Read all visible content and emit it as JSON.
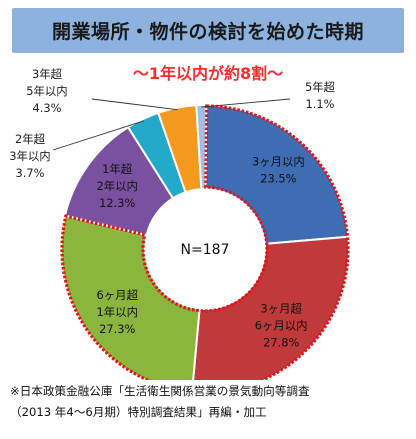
{
  "title": "開業場所・物件の検討を始めた時期",
  "subtitle": "～1年以内が約8割～",
  "source_lines": [
    "※日本政策金融公庫「生活衛生関係営業の景気動向等調査",
    "（2013 年4～6月期）特別調査結果」再編・加工"
  ],
  "chart_data": {
    "type": "pie",
    "donut": true,
    "center_label": "N=187",
    "slices": [
      {
        "label_lines": [
          "3ヶ月以内"
        ],
        "pct_text": "23.5%",
        "value": 23.5,
        "color": "#3f6db3",
        "label_pos": "inside",
        "highlight": true
      },
      {
        "label_lines": [
          "3ヶ月超",
          "6ヶ月以内"
        ],
        "pct_text": "27.8%",
        "value": 27.8,
        "color": "#c0393b",
        "label_pos": "inside",
        "highlight": true
      },
      {
        "label_lines": [
          "6ヶ月超",
          "1年以内"
        ],
        "pct_text": "27.3%",
        "value": 27.3,
        "color": "#8bb63e",
        "label_pos": "inside",
        "highlight": true
      },
      {
        "label_lines": [
          "1年超",
          "2年以内"
        ],
        "pct_text": "12.3%",
        "value": 12.3,
        "color": "#7a51a0",
        "label_pos": "inside",
        "highlight": false
      },
      {
        "label_lines": [
          "2年超",
          "3年以内"
        ],
        "pct_text": "3.7%",
        "value": 3.7,
        "color": "#23a9c9",
        "label_pos": "outside",
        "highlight": false
      },
      {
        "label_lines": [
          "3年超",
          "5年以内"
        ],
        "pct_text": "4.3%",
        "value": 4.3,
        "color": "#f39a1f",
        "label_pos": "outside",
        "highlight": false
      },
      {
        "label_lines": [
          "5年超"
        ],
        "pct_text": "1.1%",
        "value": 1.1,
        "color": "#a4bde0",
        "label_pos": "outside",
        "highlight": false
      }
    ],
    "highlight_color": "#e0161c"
  }
}
